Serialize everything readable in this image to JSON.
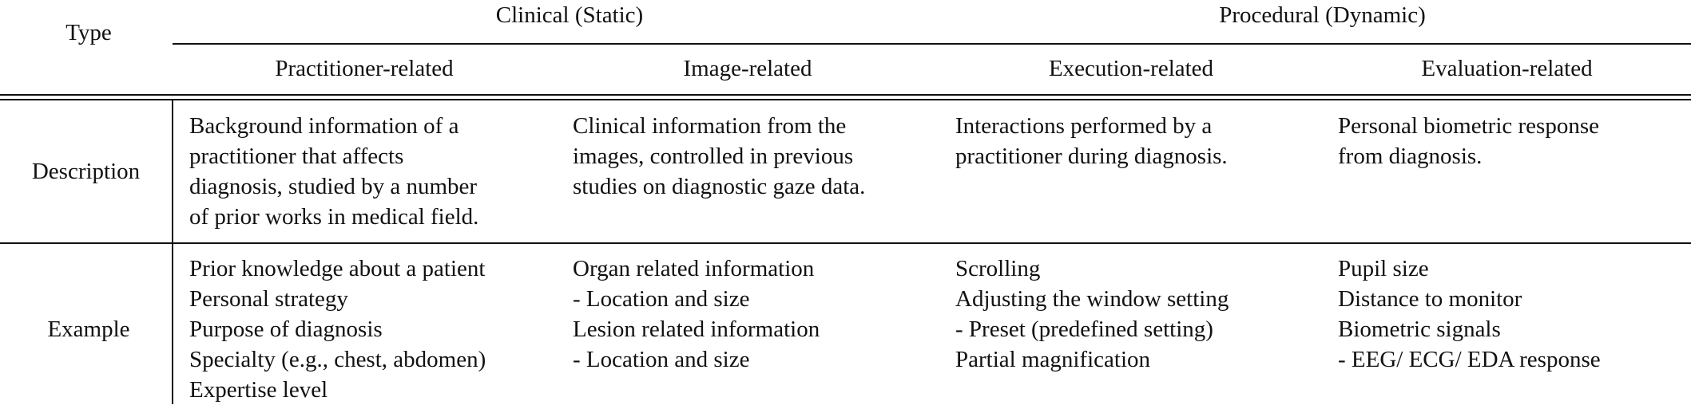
{
  "header": {
    "type_label": "Type",
    "groups": [
      {
        "label": "Clinical (Static)"
      },
      {
        "label": "Procedural (Dynamic)"
      }
    ],
    "columns": [
      {
        "label": "Practitioner-related"
      },
      {
        "label": "Image-related"
      },
      {
        "label": "Execution-related"
      },
      {
        "label": "Evaluation-related"
      }
    ]
  },
  "rows": [
    {
      "label": "Description",
      "cells": [
        [
          "Background information of a",
          "practitioner that affects",
          "diagnosis, studied by a number",
          "of prior works in medical field."
        ],
        [
          "Clinical information from the",
          "images, controlled in previous",
          "studies on diagnostic gaze data."
        ],
        [
          "Interactions performed by a",
          "practitioner during diagnosis."
        ],
        [
          "Personal biometric response",
          "from diagnosis."
        ]
      ]
    },
    {
      "label": "Example",
      "cells": [
        [
          "Prior knowledge about a patient",
          "Personal strategy",
          "Purpose of diagnosis",
          "Specialty (e.g., chest, abdomen)",
          "Expertise level"
        ],
        [
          "Organ related information",
          "- Location and size",
          "Lesion related information",
          "- Location and size"
        ],
        [
          "Scrolling",
          "Adjusting the window setting",
          "- Preset (predefined setting)",
          "Partial magnification"
        ],
        [
          "Pupil size",
          "Distance to monitor",
          "Biometric signals",
          "- EEG/ ECG/ EDA response"
        ]
      ]
    }
  ]
}
